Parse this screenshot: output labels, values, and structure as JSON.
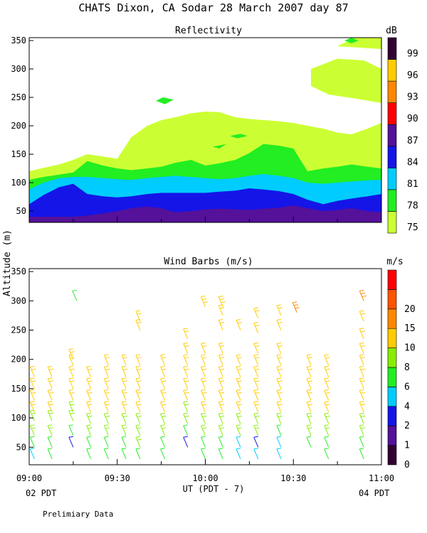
{
  "page": {
    "title": "CHATS Dixon, CA   Sodar   28 March 2007   day  87",
    "ylabel": "Altitude  (m)",
    "xlabel": "UT  (PDT - 7)",
    "left_bottom_label": "02 PDT",
    "right_bottom_label": "04 PDT",
    "footer": "Prelimiary Data"
  },
  "chart_data": [
    {
      "type": "area",
      "title": "Reflectivity",
      "xlabel": "UT  (PDT - 7)",
      "ylabel": "Altitude  (m)",
      "xlim": [
        9.0,
        11.0
      ],
      "ylim": [
        30,
        355
      ],
      "x_ticks": [
        {
          "value": 9.0,
          "label": "09:00"
        },
        {
          "value": 9.5,
          "label": "09:30"
        },
        {
          "value": 10.0,
          "label": "10:00"
        },
        {
          "value": 10.5,
          "label": "10:30"
        },
        {
          "value": 11.0,
          "label": "11:00"
        }
      ],
      "y_ticks": [
        50,
        100,
        150,
        200,
        250,
        300,
        350
      ],
      "colorbar": {
        "unit": "dB",
        "levels": [
          {
            "label": "75",
            "color": "#ccff33"
          },
          {
            "label": "78",
            "color": "#22ee22"
          },
          {
            "label": "81",
            "color": "#00ccff"
          },
          {
            "label": "84",
            "color": "#1515e8"
          },
          {
            "label": "87",
            "color": "#55119a"
          },
          {
            "label": "90",
            "color": "#ff0000"
          },
          {
            "label": "93",
            "color": "#ff8800"
          },
          {
            "label": "96",
            "color": "#ffcc00"
          },
          {
            "label": "99",
            "color": "#330033"
          }
        ]
      },
      "x": [
        9.0,
        9.08,
        9.17,
        9.25,
        9.33,
        9.42,
        9.5,
        9.58,
        9.67,
        9.75,
        9.83,
        9.92,
        10.0,
        10.08,
        10.17,
        10.25,
        10.33,
        10.42,
        10.5,
        10.58,
        10.67,
        10.75,
        10.83,
        10.92,
        11.0
      ],
      "series": [
        {
          "color_index": 0,
          "top": [
            120,
            126,
            132,
            140,
            150,
            146,
            142,
            180,
            200,
            210,
            215,
            222,
            225,
            224,
            215,
            212,
            210,
            208,
            205,
            200,
            195,
            188,
            185,
            195,
            205
          ]
        },
        {
          "color_index": 1,
          "top": [
            105,
            110,
            114,
            118,
            138,
            130,
            125,
            122,
            125,
            128,
            135,
            140,
            130,
            134,
            140,
            152,
            168,
            165,
            160,
            120,
            125,
            128,
            132,
            128,
            125
          ]
        },
        {
          "color_index": 2,
          "top": [
            88,
            100,
            108,
            110,
            110,
            108,
            106,
            105,
            108,
            110,
            112,
            110,
            108,
            106,
            108,
            112,
            115,
            112,
            108,
            100,
            98,
            100,
            102,
            104,
            105
          ]
        },
        {
          "color_index": 3,
          "top": [
            62,
            78,
            92,
            98,
            80,
            76,
            74,
            76,
            80,
            82,
            82,
            82,
            82,
            84,
            86,
            90,
            88,
            85,
            80,
            70,
            62,
            68,
            72,
            76,
            80
          ]
        },
        {
          "color_index": 4,
          "top": [
            40,
            40,
            40,
            40,
            42,
            46,
            50,
            55,
            58,
            55,
            48,
            50,
            53,
            54,
            53,
            52,
            54,
            56,
            60,
            55,
            50,
            52,
            55,
            50,
            48
          ]
        }
      ],
      "islands": [
        {
          "color_index": 0,
          "points": [
            [
              10.6,
              300
            ],
            [
              10.75,
              318
            ],
            [
              10.9,
              315
            ],
            [
              11.0,
              300
            ],
            [
              11.0,
              240
            ],
            [
              10.85,
              248
            ],
            [
              10.7,
              255
            ],
            [
              10.6,
              270
            ]
          ]
        },
        {
          "color_index": 0,
          "points": [
            [
              10.75,
              340
            ],
            [
              10.85,
              355
            ],
            [
              11.0,
              355
            ],
            [
              11.0,
              335
            ]
          ]
        },
        {
          "color_index": 1,
          "points": [
            [
              10.79,
              350
            ],
            [
              10.83,
              345
            ],
            [
              10.87,
              350
            ],
            [
              10.83,
              355
            ]
          ]
        },
        {
          "color_index": 1,
          "points": [
            [
              9.72,
              244
            ],
            [
              9.76,
              250
            ],
            [
              9.82,
              246
            ],
            [
              9.77,
              238
            ]
          ]
        },
        {
          "color_index": 1,
          "points": [
            [
              10.08,
              160
            ],
            [
              10.12,
              168
            ],
            [
              10.04,
              163
            ]
          ]
        },
        {
          "color_index": 1,
          "points": [
            [
              10.14,
              182
            ],
            [
              10.2,
              186
            ],
            [
              10.24,
              182
            ],
            [
              10.18,
              178
            ]
          ]
        }
      ]
    },
    {
      "type": "scatter",
      "title": "Wind Barbs (m/s)",
      "xlabel": "UT  (PDT - 7)",
      "ylabel": "Altitude  (m)",
      "xlim": [
        9.0,
        11.0
      ],
      "ylim": [
        20,
        355
      ],
      "x_ticks": [
        {
          "value": 9.0,
          "label": "09:00"
        },
        {
          "value": 9.5,
          "label": "09:30"
        },
        {
          "value": 10.0,
          "label": "10:00"
        },
        {
          "value": 10.5,
          "label": "10:30"
        },
        {
          "value": 11.0,
          "label": "11:00"
        }
      ],
      "y_ticks": [
        50,
        100,
        150,
        200,
        250,
        300,
        350
      ],
      "colorbar": {
        "unit": "m/s",
        "levels": [
          {
            "label": "0",
            "color": "#330033"
          },
          {
            "label": "1",
            "color": "#55119a"
          },
          {
            "label": "2",
            "color": "#1515e8"
          },
          {
            "label": "4",
            "color": "#00ccff"
          },
          {
            "label": "6",
            "color": "#22ee22"
          },
          {
            "label": "8",
            "color": "#88ee00"
          },
          {
            "label": "10",
            "color": "#ffcc00"
          },
          {
            "label": "15",
            "color": "#ff8800"
          },
          {
            "label": "20",
            "color": "#ff5500"
          },
          {
            "label": "",
            "color": "#ff0000"
          }
        ]
      },
      "columns": [
        {
          "x": 9.03,
          "heights": [
            30,
            50,
            70,
            95,
            110,
            130,
            150,
            170
          ],
          "speeds": [
            5,
            7,
            9,
            9,
            10,
            10,
            10,
            10
          ]
        },
        {
          "x": 9.13,
          "heights": [
            30,
            50,
            70,
            95,
            110,
            130,
            150,
            170
          ],
          "speeds": [
            6,
            6,
            9,
            9,
            10,
            10,
            10,
            10
          ]
        },
        {
          "x": 9.25,
          "heights": [
            50,
            70,
            95,
            110,
            130,
            150,
            170,
            190,
            200
          ],
          "speeds": [
            3,
            6,
            9,
            9,
            10,
            10,
            10,
            12,
            12
          ]
        },
        {
          "x": 9.27,
          "heights": [
            300
          ],
          "speeds": [
            6
          ]
        },
        {
          "x": 9.35,
          "heights": [
            30,
            50,
            70,
            90,
            110,
            130,
            150,
            170
          ],
          "speeds": [
            6,
            7,
            9,
            9,
            10,
            10,
            10,
            10
          ]
        },
        {
          "x": 9.45,
          "heights": [
            30,
            50,
            70,
            90,
            110,
            130,
            150,
            170,
            190
          ],
          "speeds": [
            6,
            7,
            9,
            9,
            10,
            10,
            10,
            10,
            10
          ]
        },
        {
          "x": 9.55,
          "heights": [
            30,
            50,
            70,
            90,
            110,
            130,
            150,
            170,
            190
          ],
          "speeds": [
            6,
            7,
            9,
            9,
            10,
            10,
            10,
            10,
            10
          ]
        },
        {
          "x": 9.63,
          "heights": [
            30,
            50,
            70,
            90,
            110,
            130,
            150,
            170,
            190,
            250,
            265
          ],
          "speeds": [
            6,
            8,
            9,
            9,
            10,
            10,
            10,
            10,
            10,
            12,
            12
          ]
        },
        {
          "x": 9.77,
          "heights": [
            30,
            50,
            70,
            90,
            110,
            130,
            150,
            170,
            190
          ],
          "speeds": [
            6,
            7,
            9,
            9,
            10,
            10,
            10,
            10,
            10
          ]
        },
        {
          "x": 9.9,
          "heights": [
            50,
            70,
            90,
            110,
            130,
            150,
            170,
            190,
            210,
            235
          ],
          "speeds": [
            3,
            6,
            9,
            9,
            10,
            10,
            10,
            10,
            11,
            12
          ]
        },
        {
          "x": 10.0,
          "heights": [
            30,
            50,
            70,
            90,
            110,
            130,
            150,
            170,
            190,
            210,
            290
          ],
          "speeds": [
            6,
            7,
            9,
            9,
            10,
            10,
            10,
            10,
            10,
            10,
            14
          ]
        },
        {
          "x": 10.1,
          "heights": [
            30,
            50,
            70,
            90,
            110,
            130,
            150,
            170,
            190,
            210,
            250,
            275,
            290
          ],
          "speeds": [
            6,
            6,
            9,
            9,
            10,
            10,
            10,
            10,
            10,
            10,
            12,
            12,
            13
          ]
        },
        {
          "x": 10.2,
          "heights": [
            30,
            50,
            70,
            90,
            110,
            130,
            150,
            170,
            190,
            250
          ],
          "speeds": [
            5,
            4,
            8,
            9,
            10,
            10,
            10,
            10,
            10,
            12
          ]
        },
        {
          "x": 10.3,
          "heights": [
            30,
            50,
            70,
            90,
            110,
            130,
            150,
            170,
            190,
            210,
            245,
            270
          ],
          "speeds": [
            5,
            3,
            8,
            9,
            10,
            10,
            10,
            10,
            10,
            10,
            11,
            12
          ]
        },
        {
          "x": 10.43,
          "heights": [
            30,
            50,
            70,
            90,
            110,
            130,
            150,
            170,
            190,
            210,
            250,
            275
          ],
          "speeds": [
            5,
            4,
            7,
            9,
            10,
            10,
            10,
            10,
            10,
            10,
            11,
            12
          ]
        },
        {
          "x": 10.52,
          "heights": [
            280
          ],
          "speeds": [
            16
          ]
        },
        {
          "x": 10.6,
          "heights": [
            50,
            70,
            90,
            110,
            130,
            150,
            170,
            190
          ],
          "speeds": [
            6,
            9,
            9,
            10,
            10,
            10,
            10,
            10
          ]
        },
        {
          "x": 10.7,
          "heights": [
            30,
            50,
            70,
            90,
            110,
            130,
            150,
            170,
            190
          ],
          "speeds": [
            6,
            7,
            9,
            9,
            10,
            10,
            10,
            10,
            10
          ]
        },
        {
          "x": 10.9,
          "heights": [
            30,
            50,
            70,
            90,
            110,
            130,
            150,
            170,
            190,
            210,
            235,
            265,
            300
          ],
          "speeds": [
            6,
            7,
            9,
            9,
            10,
            10,
            10,
            10,
            10,
            10,
            11,
            12,
            18
          ]
        }
      ]
    }
  ]
}
